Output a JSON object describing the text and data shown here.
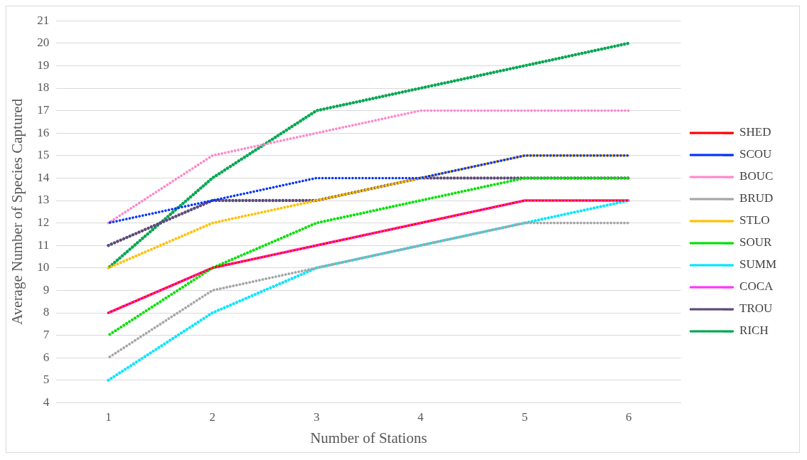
{
  "chart_data": {
    "type": "line",
    "xlabel": "Number of Stations",
    "ylabel": "Average Number of Species Captured",
    "categories": [
      "1",
      "2",
      "3",
      "4",
      "5",
      "6"
    ],
    "series": [
      {
        "name": "SHED",
        "color": "#ff0000",
        "values": [
          8,
          10,
          11,
          12,
          13,
          13
        ]
      },
      {
        "name": "SCOU",
        "color": "#0033ff",
        "values": [
          12,
          13,
          14,
          14,
          15,
          15
        ]
      },
      {
        "name": "BOUC",
        "color": "#ff88cc",
        "values": [
          12,
          15,
          16,
          17,
          17,
          17
        ]
      },
      {
        "name": "BRUD",
        "color": "#a6a6a6",
        "values": [
          6,
          9,
          10,
          11,
          12,
          12
        ]
      },
      {
        "name": "STLO",
        "color": "#ffc000",
        "values": [
          10,
          12,
          13,
          14,
          15,
          15
        ]
      },
      {
        "name": "SOUR",
        "color": "#00e000",
        "values": [
          7,
          10,
          12,
          13,
          14,
          14
        ]
      },
      {
        "name": "SUMM",
        "color": "#00e5ff",
        "values": [
          5,
          8,
          10,
          11,
          12,
          13
        ]
      },
      {
        "name": "COCA",
        "color": "#ff33ff",
        "values": [
          8,
          10,
          11,
          12,
          13,
          13
        ]
      },
      {
        "name": "TROU",
        "color": "#5b4a78",
        "values": [
          11,
          13,
          13,
          14,
          14,
          14
        ]
      },
      {
        "name": "RICH",
        "color": "#00a650",
        "values": [
          10,
          14,
          17,
          18,
          19,
          20
        ]
      }
    ],
    "ylim": [
      4,
      21
    ],
    "yticks": [
      4,
      5,
      6,
      7,
      8,
      9,
      10,
      11,
      12,
      13,
      14,
      15,
      16,
      17,
      18,
      19,
      20,
      21
    ],
    "grid": "y",
    "legend": "right",
    "marker": "none",
    "line_style": "dotted"
  }
}
